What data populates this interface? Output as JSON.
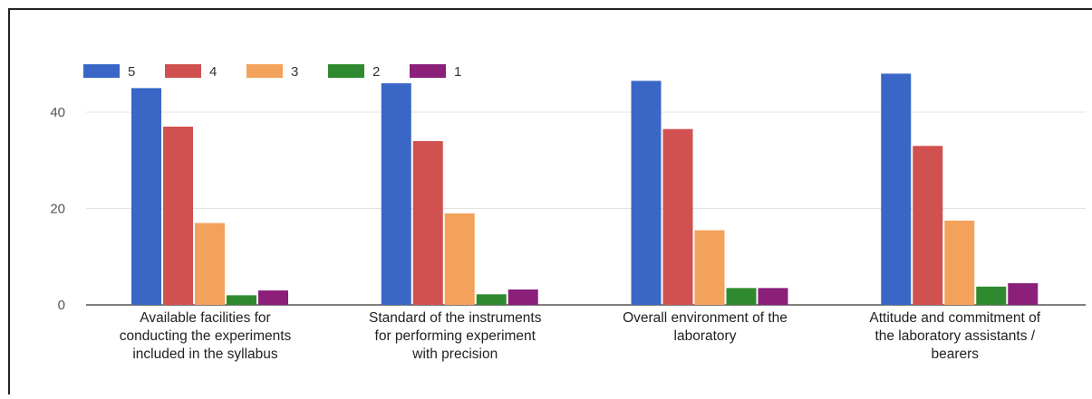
{
  "chart_data": {
    "type": "bar",
    "categories": [
      [
        "Available facilities for",
        "conducting the experiments",
        "included in the syllabus"
      ],
      [
        "Standard of the instruments",
        "for performing experiment",
        "with precision"
      ],
      [
        "Overall environment of the",
        "laboratory"
      ],
      [
        "Attitude and commitment of",
        "the laboratory assistants /",
        "bearers"
      ]
    ],
    "series": [
      {
        "name": "5",
        "color": "#3a67c6",
        "values": [
          45,
          46,
          46.5,
          48
        ]
      },
      {
        "name": "4",
        "color": "#d0514f",
        "values": [
          37,
          34,
          36.5,
          33
        ]
      },
      {
        "name": "3",
        "color": "#f3a25b",
        "values": [
          17,
          19,
          15.5,
          17.5
        ]
      },
      {
        "name": "2",
        "color": "#2f8a2f",
        "values": [
          2,
          2.2,
          3.5,
          3.8
        ]
      },
      {
        "name": "1",
        "color": "#8b1f7a",
        "values": [
          3,
          3.2,
          3.5,
          4.5
        ]
      }
    ],
    "yticks": [
      0,
      20,
      40
    ],
    "ylim": [
      0,
      50
    ],
    "grid": true,
    "legend": "top-left",
    "title": "",
    "xlabel": "",
    "ylabel": ""
  }
}
